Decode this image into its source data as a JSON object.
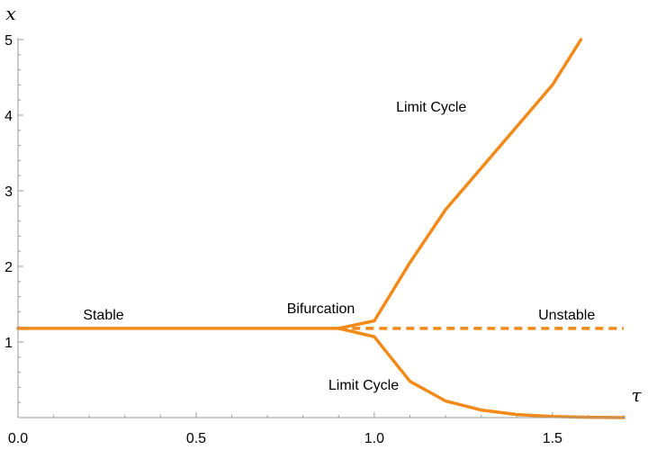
{
  "chart_data": {
    "type": "line",
    "title": "",
    "xlabel": "τ",
    "ylabel": "x",
    "xlim": [
      0,
      1.7
    ],
    "ylim": [
      0,
      5
    ],
    "x_ticks": [
      {
        "value": 0.0,
        "label": "0.0"
      },
      {
        "value": 0.5,
        "label": "0.5"
      },
      {
        "value": 1.0,
        "label": "1.0"
      },
      {
        "value": 1.5,
        "label": "1.5"
      }
    ],
    "y_ticks": [
      {
        "value": 1,
        "label": "1"
      },
      {
        "value": 2,
        "label": "2"
      },
      {
        "value": 3,
        "label": "3"
      },
      {
        "value": 4,
        "label": "4"
      },
      {
        "value": 5,
        "label": "5"
      }
    ],
    "line_color": "#F28A1A",
    "series": [
      {
        "name": "stable-branch",
        "style": "solid",
        "points": [
          [
            0,
            1.18
          ],
          [
            0.9,
            1.18
          ]
        ]
      },
      {
        "name": "limit-cycle-upper",
        "style": "solid",
        "points": [
          [
            0.9,
            1.18
          ],
          [
            1.0,
            1.28
          ],
          [
            1.1,
            2.05
          ],
          [
            1.2,
            2.75
          ],
          [
            1.3,
            3.3
          ],
          [
            1.4,
            3.85
          ],
          [
            1.5,
            4.4
          ],
          [
            1.58,
            5.0
          ]
        ]
      },
      {
        "name": "limit-cycle-lower",
        "style": "solid",
        "points": [
          [
            0.9,
            1.18
          ],
          [
            1.0,
            1.07
          ],
          [
            1.1,
            0.48
          ],
          [
            1.2,
            0.22
          ],
          [
            1.3,
            0.1
          ],
          [
            1.4,
            0.04
          ],
          [
            1.5,
            0.015
          ],
          [
            1.6,
            0.005
          ],
          [
            1.7,
            0.0
          ]
        ]
      },
      {
        "name": "unstable-branch",
        "style": "dashed",
        "points": [
          [
            0.9,
            1.18
          ],
          [
            1.7,
            1.18
          ]
        ]
      }
    ],
    "annotations": [
      {
        "text": "Stable",
        "x": 0.24,
        "y": 1.3
      },
      {
        "text": "Bifurcation",
        "x": 0.85,
        "y": 1.38
      },
      {
        "text": "Limit Cycle",
        "x": 1.16,
        "y": 4.05
      },
      {
        "text": "Unstable",
        "x": 1.54,
        "y": 1.3
      },
      {
        "text": "Limit Cycle",
        "x": 0.97,
        "y": 0.37
      }
    ]
  }
}
